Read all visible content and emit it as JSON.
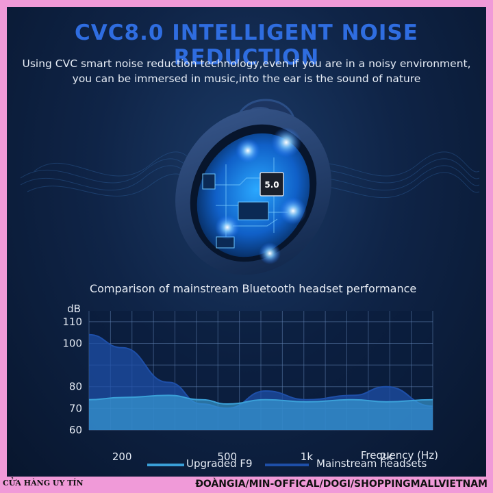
{
  "title": "CVC8.0 INTELLIGENT NOISE REDUCTION",
  "subtitle_lines": [
    "Using CVC smart noise reduction technology,even if you are in a noisy environment,",
    "you can be immersed in music,into the ear is the sound of nature"
  ],
  "chip_label": "5.0",
  "chart_data": {
    "type": "area",
    "title": "Comparison of mainstream Bluetooth headset performance",
    "ylabel": "dB",
    "xlabel": "Frequency (Hz)",
    "yticks": [
      "110",
      "100",
      "80",
      "70",
      "60"
    ],
    "xticks": [
      "200",
      "500",
      "1k",
      "2k"
    ],
    "ylim": [
      60,
      115
    ],
    "x": [
      150,
      200,
      300,
      400,
      500,
      700,
      1000,
      1500,
      2000,
      3000
    ],
    "series": [
      {
        "name": "Upgraded F9",
        "color": "#3aa0d8",
        "values": [
          74,
          75,
          76,
          74,
          72,
          74,
          73,
          74,
          73,
          74
        ]
      },
      {
        "name": "Mainstream headsets",
        "color": "#1e4fa8",
        "values": [
          104,
          98,
          82,
          72,
          70,
          78,
          74,
          76,
          80,
          71
        ]
      }
    ]
  },
  "footer": {
    "left": "CỬA HÀNG UY TÍN",
    "right": "ĐOÀNGIA/MIN-OFFICAL/DOGI/SHOPPINGMALLVIETNAM"
  },
  "colors": {
    "frame": "#f09ad8",
    "title": "#2f6de0",
    "panel": "#0f2447"
  }
}
